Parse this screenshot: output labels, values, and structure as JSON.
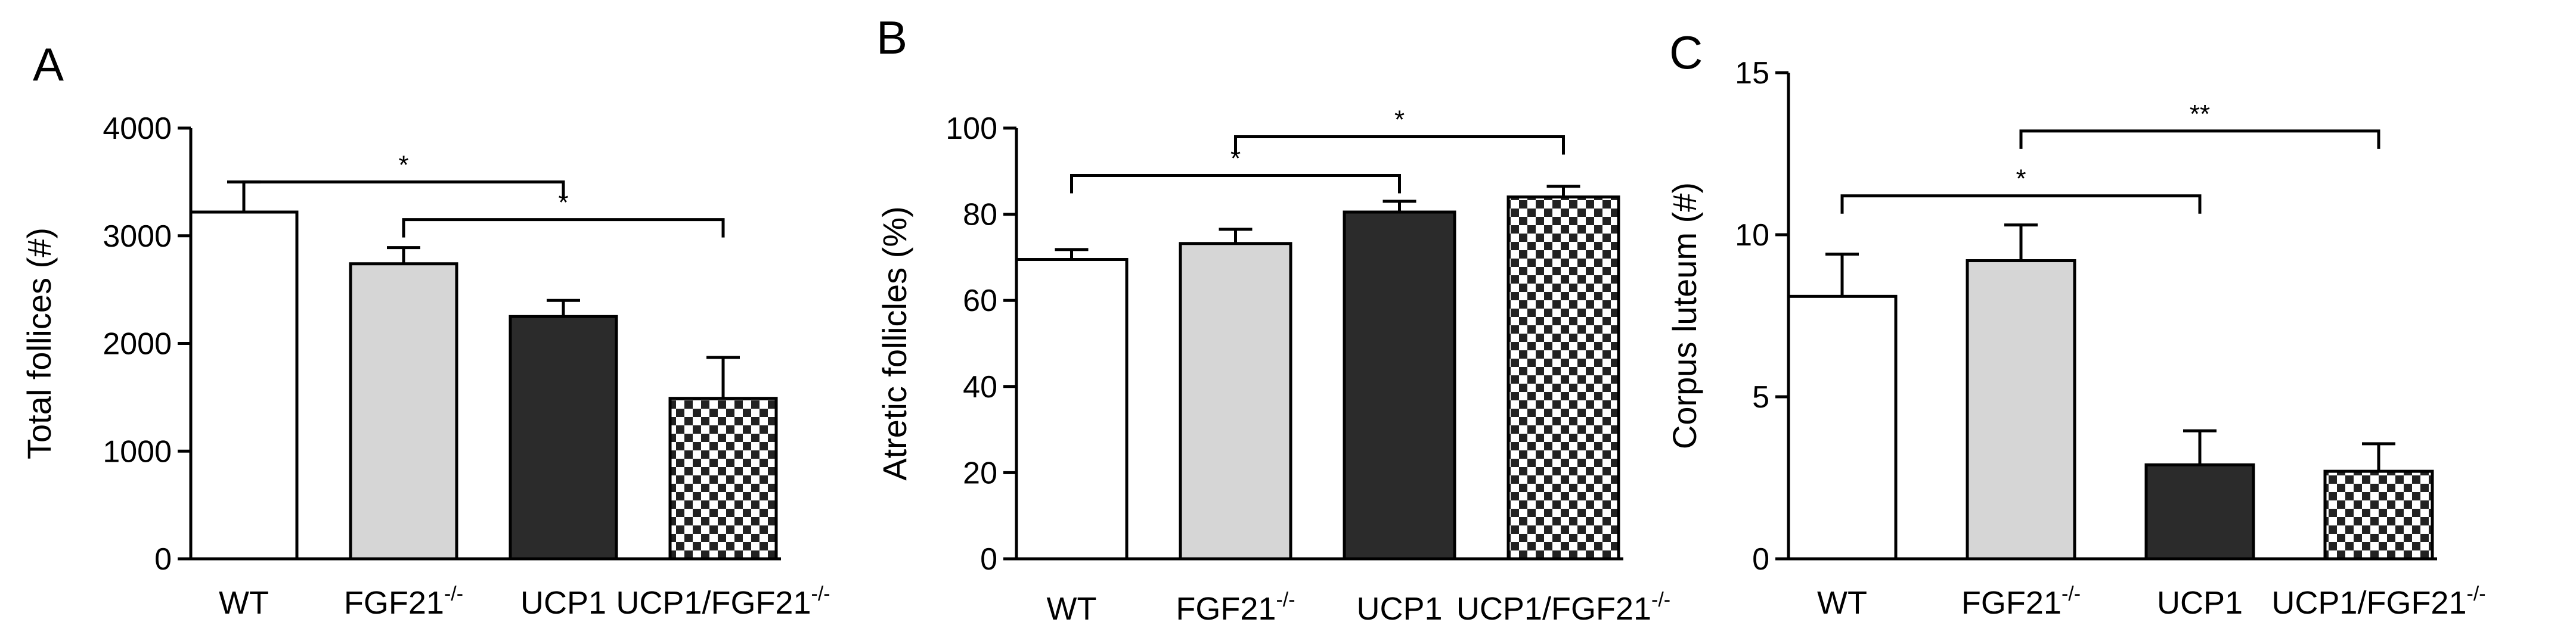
{
  "colors": {
    "white_bar": "#ffffff",
    "gray_bar": "#d6d6d6",
    "dark_bar": "#2b2b2b",
    "checker_dark": "#222222",
    "checker_light": "#ffffff",
    "axis": "#000000"
  },
  "chart_data": [
    {
      "panel": "A",
      "type": "bar",
      "ylabel": "Total follices (#)",
      "ylim": [
        0,
        4000
      ],
      "yticks": [
        0,
        1000,
        2000,
        3000,
        4000
      ],
      "categories": [
        {
          "label": "WT",
          "sup": "",
          "fill": "white"
        },
        {
          "label": "FGF21",
          "sup": "-/-",
          "fill": "gray"
        },
        {
          "label": "UCP1",
          "sup": "",
          "fill": "dark"
        },
        {
          "label": "UCP1/FGF21",
          "sup": "-/-",
          "fill": "checker"
        }
      ],
      "values": [
        3220,
        2740,
        2250,
        1490
      ],
      "errors": [
        280,
        150,
        150,
        380
      ],
      "significance": [
        {
          "from": 0,
          "to": 2,
          "label": "*",
          "level": 3500
        },
        {
          "from": 1,
          "to": 3,
          "label": "*",
          "level": 3150
        }
      ]
    },
    {
      "panel": "B",
      "type": "bar",
      "ylabel": "Atretic follicles (%)",
      "ylim": [
        0,
        100
      ],
      "yticks": [
        0,
        20,
        40,
        60,
        80,
        100
      ],
      "categories": [
        {
          "label": "WT",
          "sup": "",
          "fill": "white"
        },
        {
          "label": "FGF21",
          "sup": "-/-",
          "fill": "gray"
        },
        {
          "label": "UCP1",
          "sup": "",
          "fill": "dark"
        },
        {
          "label": "UCP1/FGF21",
          "sup": "-/-",
          "fill": "checker"
        }
      ],
      "values": [
        69.5,
        73.2,
        80.5,
        84.0
      ],
      "errors": [
        2.3,
        3.3,
        2.5,
        2.5
      ],
      "significance": [
        {
          "from": 0,
          "to": 2,
          "label": "*",
          "level": 89
        },
        {
          "from": 1,
          "to": 3,
          "label": "*",
          "level": 98
        }
      ]
    },
    {
      "panel": "C",
      "type": "bar",
      "ylabel": "Corpus luteum (#)",
      "ylim": [
        0,
        15
      ],
      "yticks": [
        0,
        5,
        10,
        15
      ],
      "categories": [
        {
          "label": "WT",
          "sup": "",
          "fill": "white"
        },
        {
          "label": "FGF21",
          "sup": "-/-",
          "fill": "gray"
        },
        {
          "label": "UCP1",
          "sup": "",
          "fill": "dark"
        },
        {
          "label": "UCP1/FGF21",
          "sup": "-/-",
          "fill": "checker"
        }
      ],
      "values": [
        8.1,
        9.2,
        2.9,
        2.7
      ],
      "errors": [
        1.3,
        1.1,
        1.05,
        0.85
      ],
      "significance": [
        {
          "from": 0,
          "to": 2,
          "label": "*",
          "level": 11.2
        },
        {
          "from": 1,
          "to": 3,
          "label": "**",
          "level": 13.2
        }
      ]
    }
  ]
}
